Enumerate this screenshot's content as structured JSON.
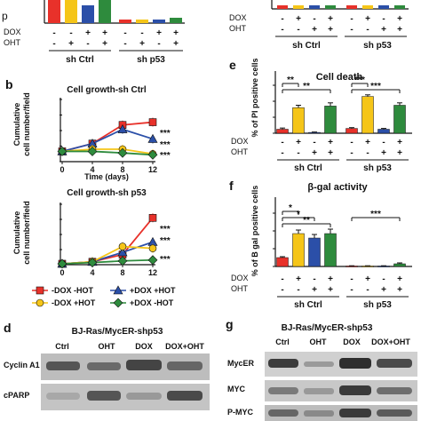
{
  "colors": {
    "red": "#e8312a",
    "yellow": "#f5c518",
    "blue": "#2b4fa8",
    "green": "#2e8b3d",
    "band_dark": "#3a3a3a",
    "band_light": "#9a9a9a",
    "blot_bg": "#b8b8b8"
  },
  "top_panel_a": {
    "ylabel_fragment": "p",
    "dox_signs": [
      "-",
      "-",
      "+",
      "+",
      "-",
      "-",
      "+",
      "+"
    ],
    "oht_signs": [
      "-",
      "+",
      "-",
      "+",
      "-",
      "+",
      "-",
      "+"
    ],
    "row_labels": {
      "dox": "DOX",
      "oht": "OHT"
    },
    "groups": [
      "sh Ctrl",
      "sh p53"
    ]
  },
  "top_panel_right": {
    "dox_signs": [
      "-",
      "+",
      "-",
      "+",
      "-",
      "+",
      "-",
      "+"
    ],
    "oht_signs": [
      "-",
      "-",
      "+",
      "+",
      "-",
      "-",
      "+",
      "+"
    ],
    "row_labels": {
      "dox": "DOX",
      "oht": "OHT"
    },
    "groups": [
      "sh Ctrl",
      "sh p53"
    ]
  },
  "panel_b": {
    "letter": "b",
    "ylabel_lines": [
      "Cumulative",
      "cell number/field"
    ],
    "xlabel": "Time (days)",
    "legend": [
      "-DOX -HOT",
      "+DOX +HOT",
      "-DOX +HOT",
      "+DOX -HOT"
    ]
  },
  "panel_e": {
    "letter": "e"
  },
  "panel_f": {
    "letter": "f"
  },
  "panel_d": {
    "letter": "d",
    "title": "BJ-Ras/MycER-shp53",
    "lanes": [
      "Ctrl",
      "OHT",
      "DOX",
      "DOX+OHT"
    ],
    "rows": [
      "Cyclin A1",
      "cPARP"
    ]
  },
  "panel_g": {
    "letter": "g",
    "title": "BJ-Ras/MycER-shp53",
    "lanes": [
      "Ctrl",
      "OHT",
      "DOX",
      "DOX+OHT"
    ],
    "rows": [
      "MycER",
      "MYC",
      "P-MYC"
    ]
  },
  "chart_data": [
    {
      "type": "line",
      "title": "Cell growth-sh Ctrl",
      "xlabel": "Time (days)",
      "ylabel": "Cumulative cell number/field",
      "x": [
        0,
        4,
        8,
        12
      ],
      "xlim": [
        0,
        12
      ],
      "ylim": [
        0,
        200
      ],
      "yticks": [
        0,
        50,
        100,
        150,
        200
      ],
      "series": [
        {
          "name": "-DOX -HOT",
          "color": "#e8312a",
          "values": [
            33,
            58,
            118,
            127
          ]
        },
        {
          "name": "+DOX +HOT",
          "color": "#2b4fa8",
          "values": [
            33,
            58,
            104,
            73
          ]
        },
        {
          "name": "-DOX +HOT",
          "color": "#f5c518",
          "values": [
            33,
            40,
            40,
            25
          ]
        },
        {
          "name": "+DOX -HOT",
          "color": "#2e8b3d",
          "values": [
            33,
            33,
            28,
            22
          ]
        }
      ],
      "annotations": [
        "***",
        "***",
        "***"
      ]
    },
    {
      "type": "line",
      "title": "Cell growth-sh p53",
      "xlabel": "Time (days)",
      "ylabel": "Cumulative cell number/field",
      "x": [
        0,
        4,
        8,
        12
      ],
      "xlim": [
        0,
        12
      ],
      "ylim": [
        0,
        4000
      ],
      "yticks": [
        0,
        1000,
        2000,
        3000,
        4000
      ],
      "series": [
        {
          "name": "-DOX -HOT",
          "color": "#e8312a",
          "values": [
            60,
            190,
            670,
            3100
          ]
        },
        {
          "name": "+DOX +HOT",
          "color": "#2b4fa8",
          "values": [
            60,
            190,
            820,
            1500
          ]
        },
        {
          "name": "-DOX +HOT",
          "color": "#f5c518",
          "values": [
            60,
            190,
            1200,
            1080
          ]
        },
        {
          "name": "+DOX -HOT",
          "color": "#2e8b3d",
          "values": [
            60,
            140,
            250,
            310
          ]
        }
      ],
      "annotations": [
        "***",
        "***",
        "***"
      ]
    },
    {
      "type": "bar",
      "title": "Cell death",
      "ylabel": "% of PI positive cells",
      "ylim": [
        0,
        60
      ],
      "yticks": [
        0,
        20,
        40,
        60
      ],
      "groups": [
        "sh Ctrl",
        "sh p53"
      ],
      "dox": [
        "-",
        "+",
        "-",
        "+",
        "-",
        "+",
        "-",
        "+"
      ],
      "oht": [
        "-",
        "-",
        "+",
        "+",
        "-",
        "-",
        "+",
        "+"
      ],
      "values": [
        5,
        32,
        1,
        34,
        6,
        46,
        5,
        35
      ],
      "errors": [
        1.5,
        3,
        0.5,
        4,
        1,
        2,
        1,
        3
      ],
      "colors": [
        "#e8312a",
        "#f5c518",
        "#2b4fa8",
        "#2e8b3d",
        "#e8312a",
        "#f5c518",
        "#2b4fa8",
        "#2e8b3d"
      ],
      "significance": [
        {
          "from": 0,
          "to": 1,
          "label": "**"
        },
        {
          "from": 0,
          "to": 3,
          "label": "**"
        },
        {
          "from": 4,
          "to": 5,
          "label": "***"
        },
        {
          "from": 4,
          "to": 7,
          "label": "***"
        }
      ]
    },
    {
      "type": "bar",
      "title": "β-gal activity",
      "ylabel": "% of B gal positive cells",
      "ylim": [
        0,
        60
      ],
      "yticks": [
        0,
        20,
        40,
        60
      ],
      "groups": [
        "sh Ctrl",
        "sh p53"
      ],
      "dox": [
        "-",
        "+",
        "-",
        "+",
        "-",
        "+",
        "-",
        "+"
      ],
      "oht": [
        "-",
        "-",
        "+",
        "+",
        "-",
        "-",
        "+",
        "+"
      ],
      "values": [
        10,
        37,
        32,
        37,
        0.5,
        0.5,
        0.5,
        3
      ],
      "errors": [
        1,
        4,
        4,
        5,
        0.3,
        0.3,
        0.3,
        1
      ],
      "colors": [
        "#e8312a",
        "#f5c518",
        "#2b4fa8",
        "#2e8b3d",
        "#e8312a",
        "#f5c518",
        "#2b4fa8",
        "#2e8b3d"
      ],
      "significance": [
        {
          "from": 0,
          "to": 1,
          "label": "*"
        },
        {
          "from": 0,
          "to": 2,
          "label": "*"
        },
        {
          "from": 0,
          "to": 3,
          "label": "**"
        },
        {
          "from": 4,
          "to": 7,
          "label": "***"
        }
      ]
    }
  ]
}
